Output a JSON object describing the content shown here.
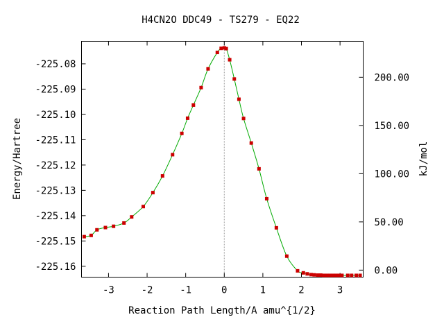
{
  "chart_data": {
    "type": "line",
    "title": "H4CN2O   DDC49 - TS279 - EQ22",
    "xlabel": "Reaction Path Length/A amu^{1/2}",
    "ylabel": "Energy/Hartree",
    "y2label": "kJ/mol",
    "xlim": [
      -3.7,
      3.6
    ],
    "ylim": [
      -225.1643,
      -225.0711
    ],
    "y2lim": [
      -7.3,
      237.3
    ],
    "grid": false,
    "legend": "none",
    "xticks": [
      -3,
      -2,
      -1,
      0,
      1,
      2,
      3
    ],
    "xtick_labels": [
      "-3",
      "-2",
      "-1",
      "0",
      "1",
      "2",
      "3"
    ],
    "yticks": [
      -225.08,
      -225.09,
      -225.1,
      -225.11,
      -225.12,
      -225.13,
      -225.14,
      -225.15,
      -225.16
    ],
    "ytick_labels": [
      "-225.08",
      "-225.09",
      "-225.10",
      "-225.11",
      "-225.12",
      "-225.13",
      "-225.14",
      "-225.15",
      "-225.16"
    ],
    "y2ticks": [
      0,
      50,
      100,
      150,
      200
    ],
    "y2tick_labels": [
      "0.00",
      "50.00",
      "100.00",
      "150.00",
      "200.00"
    ],
    "ts_x": 0.0,
    "series": [
      {
        "color": "#00aa00",
        "marker_color": "#cc0000",
        "x": [
          -3.63,
          -3.45,
          -3.3,
          -3.08,
          -2.87,
          -2.6,
          -2.4,
          -2.1,
          -1.85,
          -1.6,
          -1.34,
          -1.1,
          -0.95,
          -0.8,
          -0.6,
          -0.42,
          -0.18,
          -0.08,
          0.0,
          0.05,
          0.14,
          0.26,
          0.38,
          0.5,
          0.7,
          0.9,
          1.1,
          1.35,
          1.62,
          1.9,
          2.05,
          2.15,
          2.25,
          2.33,
          2.42,
          2.5,
          2.58,
          2.66,
          2.74,
          2.82,
          2.9,
          2.98,
          3.05,
          3.2,
          3.3,
          3.42,
          3.52
        ],
        "y": [
          -225.1483,
          -225.1478,
          -225.1456,
          -225.1447,
          -225.1442,
          -225.1429,
          -225.1405,
          -225.1364,
          -225.1309,
          -225.1243,
          -225.1159,
          -225.1075,
          -225.1015,
          -225.0963,
          -225.0894,
          -225.082,
          -225.0755,
          -225.0739,
          -225.0737,
          -225.074,
          -225.0784,
          -225.086,
          -225.094,
          -225.1016,
          -225.1113,
          -225.1215,
          -225.1333,
          -225.1448,
          -225.156,
          -225.1618,
          -225.1626,
          -225.163,
          -225.1633,
          -225.1634,
          -225.1635,
          -225.1635,
          -225.1636,
          -225.1636,
          -225.1636,
          -225.1636,
          -225.1636,
          -225.1636,
          -225.1636,
          -225.1636,
          -225.1636,
          -225.1636,
          -225.1636
        ]
      }
    ]
  }
}
